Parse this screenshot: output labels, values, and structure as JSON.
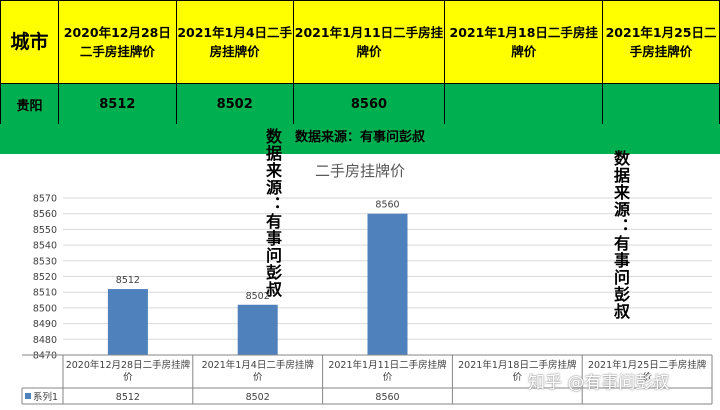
{
  "table": {
    "header_city": "城市",
    "headers": [
      "2020年12月28日二手房挂牌价",
      "2021年1月4日二手房挂牌价",
      "2021年1月11日二手房挂牌价",
      "2021年1月18日二手房挂牌价",
      "2021年1月25日二手房挂牌价"
    ],
    "city": "贵阳",
    "values": [
      "8512",
      "8502",
      "8560",
      "",
      ""
    ]
  },
  "source_note": "数据来源：有事问彭叔",
  "overlay_text_left": "数据来源：有事问彭叔",
  "overlay_text_right": "数据来源：有事问彭叔",
  "watermark": "知乎 @有事问彭叔",
  "chart_data": {
    "type": "bar",
    "title": "二手房挂牌价",
    "categories": [
      "2020年12月28日二手房挂牌价",
      "2021年1月4日二手房挂牌价",
      "2021年1月11日二手房挂牌价",
      "2021年1月18日二手房挂牌价",
      "2021年1月25日二手房挂牌价"
    ],
    "series": [
      {
        "name": "系列1",
        "values": [
          8512,
          8502,
          8560,
          null,
          null
        ]
      }
    ],
    "ylim": [
      8470,
      8570
    ],
    "ytick_step": 10,
    "data_table": true,
    "legend_position": "data-table",
    "grid": true,
    "colors": {
      "bar": "#4f81bd",
      "grid": "#d9d9d9",
      "axis": "#868686",
      "legend_key": "#4f81bd"
    }
  }
}
